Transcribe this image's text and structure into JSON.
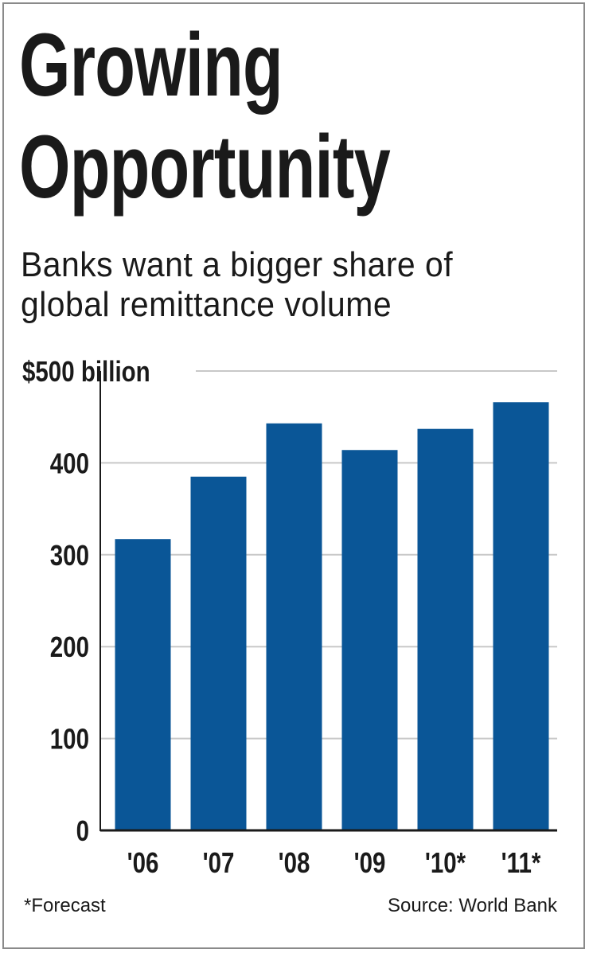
{
  "title_lines": [
    "Growing",
    "Opportunity"
  ],
  "subtitle_lines": [
    "Banks want a bigger share of",
    "global remittance volume"
  ],
  "footnote": "*Forecast",
  "source": "Source: World Bank",
  "colors": {
    "bar": "#0a5697",
    "grid": "#c8c8c8",
    "axis": "#1a1a1a"
  },
  "chart_data": {
    "type": "bar",
    "categories": [
      "'06",
      "'07",
      "'08",
      "'09",
      "'10*",
      "'11*"
    ],
    "values": [
      317,
      385,
      443,
      414,
      437,
      466
    ],
    "ylim": [
      0,
      500
    ],
    "yticks": [
      {
        "value": 0,
        "label": "0"
      },
      {
        "value": 100,
        "label": "100"
      },
      {
        "value": 200,
        "label": "200"
      },
      {
        "value": 300,
        "label": "300"
      },
      {
        "value": 400,
        "label": "400"
      },
      {
        "value": 500,
        "label": "$500 billion"
      }
    ],
    "grid": true,
    "ylabel": "",
    "xlabel": ""
  }
}
